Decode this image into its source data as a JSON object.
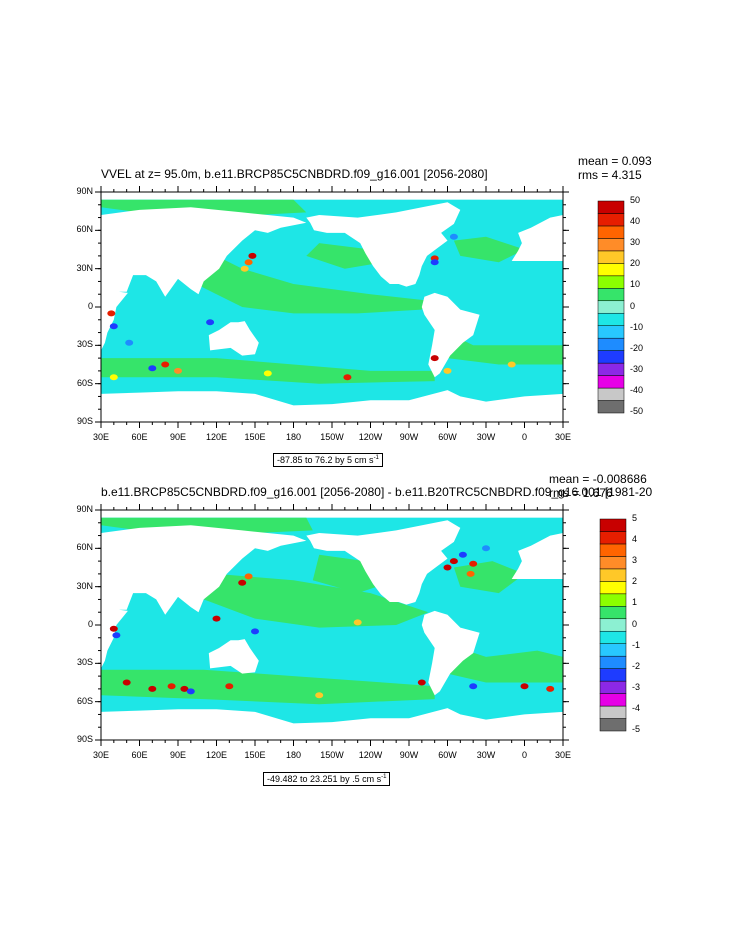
{
  "panels": [
    {
      "title": "VVEL at z=  95.0m, b.e11.BRCP85C5CNBDRD.f09_g16.001 [2056-2080]",
      "mean_text": "mean = 0.093",
      "rms_text": "rms = 4.315",
      "range_text": "-87.85 to 76.2 by 5 cm s",
      "range_unit_exp": "-1",
      "colorbar_labels": [
        "50",
        "40",
        "30",
        "20",
        "10",
        "0",
        "-10",
        "-20",
        "-30",
        "-40",
        "-50"
      ]
    },
    {
      "title": "b.e11.BRCP85C5CNBDRD.f09_g16.001 [2056-2080] - b.e11.B20TRC5CNBDRD.f09_g16.001 [1981-20",
      "mean_text": "mean = -0.008686",
      "rms_text": "rms = 1.676",
      "range_text": "-49.482 to 23.251 by .5 cm s",
      "range_unit_exp": "-1",
      "colorbar_labels": [
        "5",
        "4",
        "3",
        "2",
        "1",
        "0",
        "-1",
        "-2",
        "-3",
        "-4",
        "-5"
      ]
    }
  ],
  "axes": {
    "lat_labels": [
      "90N",
      "60N",
      "30N",
      "0",
      "30S",
      "60S",
      "90S"
    ],
    "lon_labels": [
      "30E",
      "60E",
      "90E",
      "120E",
      "150E",
      "180",
      "150W",
      "120W",
      "90W",
      "60W",
      "30W",
      "0",
      "30E"
    ]
  },
  "colors": {
    "ocean_base": "#1ee6e6",
    "ocean_green": "#36e46a",
    "land": "#ffffff",
    "palette": [
      "#6e6e6e",
      "#c8c8c8",
      "#e600e6",
      "#8c28e6",
      "#1e3cff",
      "#1e8cff",
      "#28c8ff",
      "#1ee6e6",
      "#8cf0d2",
      "#36e46a",
      "#8cff00",
      "#ffff00",
      "#ffc828",
      "#ff8c28",
      "#ff6400",
      "#e61e00",
      "#c80000"
    ]
  }
}
